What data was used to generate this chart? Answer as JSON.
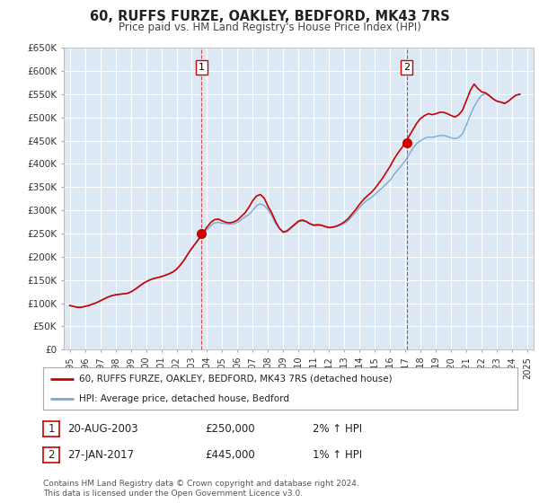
{
  "title": "60, RUFFS FURZE, OAKLEY, BEDFORD, MK43 7RS",
  "subtitle": "Price paid vs. HM Land Registry's House Price Index (HPI)",
  "background_color": "#ffffff",
  "plot_bg_color": "#dce9f5",
  "grid_color": "#c8d8e8",
  "ylim": [
    0,
    650000
  ],
  "yticks": [
    0,
    50000,
    100000,
    150000,
    200000,
    250000,
    300000,
    350000,
    400000,
    450000,
    500000,
    550000,
    600000,
    650000
  ],
  "ytick_labels": [
    "£0",
    "£50K",
    "£100K",
    "£150K",
    "£200K",
    "£250K",
    "£300K",
    "£350K",
    "£400K",
    "£450K",
    "£500K",
    "£550K",
    "£600K",
    "£650K"
  ],
  "xlim_start": 1994.6,
  "xlim_end": 2025.4,
  "sale1_x": 2003.64,
  "sale1_y": 250000,
  "sale2_x": 2017.08,
  "sale2_y": 445000,
  "sale1_date": "20-AUG-2003",
  "sale1_price": "£250,000",
  "sale1_hpi": "2% ↑ HPI",
  "sale2_date": "27-JAN-2017",
  "sale2_price": "£445,000",
  "sale2_hpi": "1% ↑ HPI",
  "red_line_color": "#cc0000",
  "blue_line_color": "#7aa8d2",
  "legend_label1": "60, RUFFS FURZE, OAKLEY, BEDFORD, MK43 7RS (detached house)",
  "legend_label2": "HPI: Average price, detached house, Bedford",
  "footer1": "Contains HM Land Registry data © Crown copyright and database right 2024.",
  "footer2": "This data is licensed under the Open Government Licence v3.0.",
  "hpi_years": [
    1995.0,
    1995.25,
    1995.5,
    1995.75,
    1996.0,
    1996.25,
    1996.5,
    1996.75,
    1997.0,
    1997.25,
    1997.5,
    1997.75,
    1998.0,
    1998.25,
    1998.5,
    1998.75,
    1999.0,
    1999.25,
    1999.5,
    1999.75,
    2000.0,
    2000.25,
    2000.5,
    2000.75,
    2001.0,
    2001.25,
    2001.5,
    2001.75,
    2002.0,
    2002.25,
    2002.5,
    2002.75,
    2003.0,
    2003.25,
    2003.5,
    2003.75,
    2004.0,
    2004.25,
    2004.5,
    2004.75,
    2005.0,
    2005.25,
    2005.5,
    2005.75,
    2006.0,
    2006.25,
    2006.5,
    2006.75,
    2007.0,
    2007.25,
    2007.5,
    2007.75,
    2008.0,
    2008.25,
    2008.5,
    2008.75,
    2009.0,
    2009.25,
    2009.5,
    2009.75,
    2010.0,
    2010.25,
    2010.5,
    2010.75,
    2011.0,
    2011.25,
    2011.5,
    2011.75,
    2012.0,
    2012.25,
    2012.5,
    2012.75,
    2013.0,
    2013.25,
    2013.5,
    2013.75,
    2014.0,
    2014.25,
    2014.5,
    2014.75,
    2015.0,
    2015.25,
    2015.5,
    2015.75,
    2016.0,
    2016.25,
    2016.5,
    2016.75,
    2017.0,
    2017.25,
    2017.5,
    2017.75,
    2018.0,
    2018.25,
    2018.5,
    2018.75,
    2019.0,
    2019.25,
    2019.5,
    2019.75,
    2020.0,
    2020.25,
    2020.5,
    2020.75,
    2021.0,
    2021.25,
    2021.5,
    2021.75,
    2022.0,
    2022.25,
    2022.5,
    2022.75,
    2023.0,
    2023.25,
    2023.5,
    2023.75,
    2024.0,
    2024.25,
    2024.5
  ],
  "hpi_values": [
    95000,
    93000,
    91000,
    91000,
    93000,
    95000,
    98000,
    101000,
    105000,
    109000,
    113000,
    116000,
    118000,
    119000,
    120000,
    121000,
    124000,
    129000,
    135000,
    141000,
    146000,
    150000,
    153000,
    155000,
    157000,
    160000,
    163000,
    167000,
    173000,
    182000,
    193000,
    206000,
    218000,
    229000,
    240000,
    249000,
    258000,
    267000,
    273000,
    274000,
    272000,
    271000,
    270000,
    271000,
    274000,
    280000,
    286000,
    291000,
    300000,
    310000,
    314000,
    310000,
    301000,
    288000,
    271000,
    260000,
    252000,
    254000,
    261000,
    268000,
    275000,
    277000,
    275000,
    270000,
    267000,
    267000,
    267000,
    264000,
    262000,
    263000,
    265000,
    268000,
    272000,
    278000,
    287000,
    296000,
    306000,
    315000,
    322000,
    327000,
    334000,
    342000,
    349000,
    357000,
    365000,
    377000,
    387000,
    397000,
    407000,
    421000,
    434000,
    444000,
    450000,
    455000,
    458000,
    457000,
    459000,
    461000,
    461000,
    459000,
    456000,
    454000,
    457000,
    465000,
    484000,
    505000,
    523000,
    537000,
    548000,
    551000,
    546000,
    539000,
    535000,
    533000,
    530000,
    535000,
    542000,
    548000,
    550000
  ],
  "red_years": [
    1995.0,
    1995.25,
    1995.5,
    1995.75,
    1996.0,
    1996.25,
    1996.5,
    1996.75,
    1997.0,
    1997.25,
    1997.5,
    1997.75,
    1998.0,
    1998.25,
    1998.5,
    1998.75,
    1999.0,
    1999.25,
    1999.5,
    1999.75,
    2000.0,
    2000.25,
    2000.5,
    2000.75,
    2001.0,
    2001.25,
    2001.5,
    2001.75,
    2002.0,
    2002.25,
    2002.5,
    2002.75,
    2003.0,
    2003.25,
    2003.5,
    2003.75,
    2004.0,
    2004.25,
    2004.5,
    2004.75,
    2005.0,
    2005.25,
    2005.5,
    2005.75,
    2006.0,
    2006.25,
    2006.5,
    2006.75,
    2007.0,
    2007.25,
    2007.5,
    2007.75,
    2008.0,
    2008.25,
    2008.5,
    2008.75,
    2009.0,
    2009.25,
    2009.5,
    2009.75,
    2010.0,
    2010.25,
    2010.5,
    2010.75,
    2011.0,
    2011.25,
    2011.5,
    2011.75,
    2012.0,
    2012.25,
    2012.5,
    2012.75,
    2013.0,
    2013.25,
    2013.5,
    2013.75,
    2014.0,
    2014.25,
    2014.5,
    2014.75,
    2015.0,
    2015.25,
    2015.5,
    2015.75,
    2016.0,
    2016.25,
    2016.5,
    2016.75,
    2017.0,
    2017.25,
    2017.5,
    2017.75,
    2018.0,
    2018.25,
    2018.5,
    2018.75,
    2019.0,
    2019.25,
    2019.5,
    2019.75,
    2020.0,
    2020.25,
    2020.5,
    2020.75,
    2021.0,
    2021.25,
    2021.5,
    2021.75,
    2022.0,
    2022.25,
    2022.5,
    2022.75,
    2023.0,
    2023.25,
    2023.5,
    2023.75,
    2024.0,
    2024.25,
    2024.5
  ],
  "red_values": [
    95000,
    93000,
    91000,
    91000,
    93000,
    95000,
    98000,
    101000,
    105000,
    109000,
    113000,
    116000,
    118000,
    119000,
    120000,
    121000,
    124000,
    129000,
    135000,
    141000,
    146000,
    150000,
    153000,
    155000,
    157000,
    160000,
    163000,
    167000,
    173000,
    182000,
    193000,
    206000,
    218000,
    229000,
    240000,
    252000,
    264000,
    274000,
    280000,
    281000,
    277000,
    274000,
    273000,
    275000,
    279000,
    287000,
    295000,
    307000,
    321000,
    331000,
    334000,
    326000,
    308000,
    294000,
    275000,
    261000,
    253000,
    256000,
    263000,
    270000,
    277000,
    279000,
    276000,
    271000,
    268000,
    269000,
    268000,
    265000,
    263000,
    264000,
    266000,
    270000,
    275000,
    282000,
    292000,
    302000,
    313000,
    323000,
    331000,
    338000,
    347000,
    358000,
    369000,
    382000,
    395000,
    410000,
    423000,
    434000,
    446000,
    460000,
    474000,
    488000,
    498000,
    504000,
    508000,
    506000,
    508000,
    511000,
    511000,
    508000,
    504000,
    501000,
    506000,
    516000,
    537000,
    558000,
    572000,
    562000,
    555000,
    553000,
    547000,
    540000,
    535000,
    533000,
    530000,
    535000,
    542000,
    548000,
    550000
  ]
}
